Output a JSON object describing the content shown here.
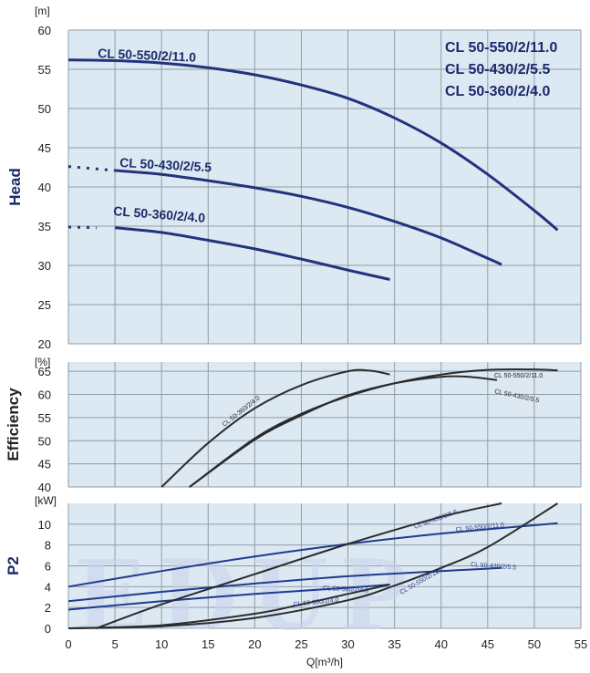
{
  "colors": {
    "head_curve": "#22327d",
    "efficiency_curve": "#2b2b2b",
    "p2_input_curve": "#1f3a8f",
    "p2_shaft_curve": "#2b2b2b",
    "panel_background": "#dde9f2",
    "ylabel_head": "#1b2a6b",
    "ylabel_efficiency": "#222222",
    "ylabel_p2": "#1b2a6b"
  },
  "watermark": {
    "text": "EDUP"
  },
  "chart_data": [
    {
      "id": "head",
      "type": "line",
      "title": "",
      "ylabel": "Head",
      "yunit": "[m]",
      "xlabel": "",
      "xlim": [
        0,
        55
      ],
      "ylim": [
        20,
        60
      ],
      "yticks": [
        "20",
        "25",
        "30",
        "35",
        "40",
        "45",
        "50",
        "55",
        "60"
      ],
      "grid": true,
      "legend": {
        "position": "top-right",
        "entries": [
          "CL 50-550/2/11.0",
          "CL 50-430/2/5.5",
          "CL 50-360/2/4.0"
        ]
      },
      "series": [
        {
          "name": "CL 50-550/2/11.0",
          "label": "CL 50-550/2/11.0",
          "x": [
            0,
            5,
            10,
            15,
            20,
            25,
            30,
            35,
            40,
            45,
            50,
            52.5
          ],
          "y": [
            56.2,
            56.1,
            55.8,
            55.2,
            54.3,
            53.0,
            51.3,
            48.8,
            45.6,
            41.6,
            37.0,
            34.5
          ],
          "dotted_until": null
        },
        {
          "name": "CL 50-430/2/5.5",
          "label": "CL 50-430/2/5.5",
          "x": [
            0,
            5,
            10,
            15,
            20,
            25,
            30,
            35,
            40,
            45,
            46.5
          ],
          "y": [
            42.6,
            42.1,
            41.6,
            40.8,
            39.9,
            38.8,
            37.4,
            35.6,
            33.5,
            30.9,
            30.1
          ],
          "dotted_until": 5
        },
        {
          "name": "CL 50-360/2/4.0",
          "label": "CL 50-360/2/4.0",
          "x": [
            0,
            5,
            10,
            15,
            20,
            25,
            30,
            34.5
          ],
          "y": [
            34.9,
            34.8,
            34.2,
            33.2,
            32.1,
            30.8,
            29.4,
            28.2
          ],
          "dotted_until": 3
        }
      ]
    },
    {
      "id": "efficiency",
      "type": "line",
      "title": "",
      "ylabel": "Efficiency",
      "yunit": "[%]",
      "xlabel": "",
      "xlim": [
        0,
        55
      ],
      "ylim": [
        40,
        67
      ],
      "yticks": [
        "40",
        "45",
        "50",
        "55",
        "60",
        "65"
      ],
      "grid": true,
      "series": [
        {
          "name": "CL 50-360/2/4.0",
          "label": "CL 50-360/2/4.0",
          "x": [
            10,
            15,
            20,
            25,
            30,
            32.5,
            34.5
          ],
          "y": [
            40,
            49.5,
            57,
            62,
            65,
            65.1,
            64.3
          ]
        },
        {
          "name": "CL 50-430/2/5.5",
          "label": "CL 50-430/2/5.5",
          "x": [
            13,
            20,
            25,
            30,
            35,
            40,
            43,
            46
          ],
          "y": [
            40,
            50.2,
            55.5,
            59.8,
            62.4,
            63.8,
            63.8,
            63.1
          ]
        },
        {
          "name": "CL 50-550/2/11.0",
          "label": "CL 50-550/2/11.0",
          "x": [
            13,
            20,
            25,
            30,
            35,
            40,
            45,
            50,
            52.5
          ],
          "y": [
            40,
            50.5,
            55.8,
            59.6,
            62.4,
            64.3,
            65.3,
            65.4,
            65.2
          ]
        }
      ]
    },
    {
      "id": "p2",
      "type": "line",
      "title": "",
      "ylabel": "P2",
      "yunit": "[kW]",
      "xlabel": "Q[m³/h]",
      "xlim": [
        0,
        55
      ],
      "ylim": [
        0,
        12
      ],
      "xticks": [
        "0",
        "5",
        "10",
        "15",
        "20",
        "25",
        "30",
        "35",
        "40",
        "45",
        "50",
        "55"
      ],
      "yticks": [
        "0",
        "2",
        "4",
        "6",
        "8",
        "10"
      ],
      "grid": true,
      "series": [
        {
          "name": "CL 50-550/2/11.0 (blue)",
          "label": "CL 50-550/2/11.0",
          "style": "blue",
          "x": [
            0,
            10,
            20,
            30,
            40,
            52.5
          ],
          "y": [
            4.0,
            5.5,
            6.9,
            8.1,
            9.1,
            10.1
          ]
        },
        {
          "name": "CL 50-430/2/5.5 (blue)",
          "label": "CL 50-430/2/5.5",
          "style": "blue",
          "x": [
            0,
            10,
            20,
            30,
            40,
            46.5
          ],
          "y": [
            2.6,
            3.5,
            4.3,
            5.0,
            5.5,
            5.8
          ]
        },
        {
          "name": "CL 50-360/2/4.0 (blue)",
          "label": "CL 50-360/2/4.0",
          "style": "blue",
          "x": [
            0,
            10,
            20,
            30,
            34.5
          ],
          "y": [
            1.8,
            2.6,
            3.3,
            3.9,
            4.2
          ]
        },
        {
          "name": "CL 50-430/2/5.5 (dark)",
          "label": "CL 50-430/2/5.5",
          "style": "dark",
          "x": [
            3,
            10,
            20,
            30,
            40,
            46.5
          ],
          "y": [
            0,
            2.3,
            5.2,
            8.1,
            10.7,
            12.0
          ]
        },
        {
          "name": "CL 50-550/2/11.0 (dark)",
          "label": "CL 50-550/2/11.0",
          "style": "dark",
          "x": [
            0,
            10,
            20,
            30,
            35,
            40,
            45,
            52.5
          ],
          "y": [
            0,
            0.2,
            1.0,
            2.7,
            4.1,
            5.8,
            7.8,
            12.0
          ]
        },
        {
          "name": "CL 50-360/2/4.0 (dark)",
          "label": "CL 50-360/2/4.0",
          "style": "dark",
          "x": [
            0,
            10,
            20,
            25,
            30,
            34.5
          ],
          "y": [
            0,
            0.3,
            1.4,
            2.3,
            3.3,
            4.2
          ]
        }
      ]
    }
  ]
}
